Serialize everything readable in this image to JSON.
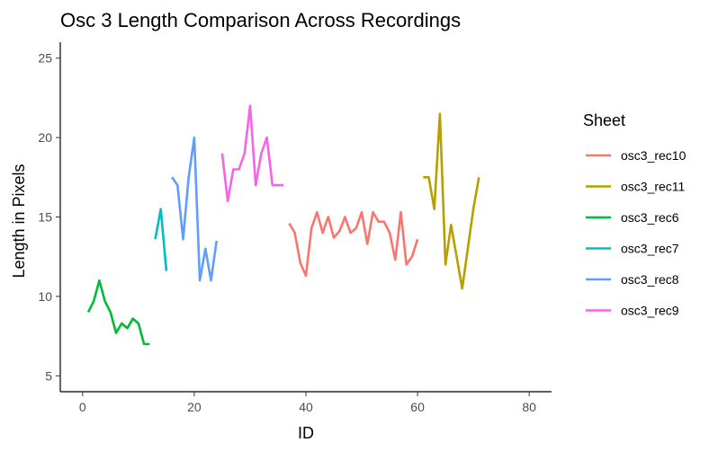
{
  "chart_data": {
    "type": "line",
    "title": "Osc 3 Length Comparison Across Recordings",
    "xlabel": "ID",
    "ylabel": "Length in Pixels",
    "xlim": [
      -4,
      84
    ],
    "ylim": [
      4,
      26
    ],
    "x_ticks": [
      0,
      20,
      40,
      60,
      80
    ],
    "y_ticks": [
      5,
      10,
      15,
      20,
      25
    ],
    "grid": false,
    "legend": {
      "title": "Sheet",
      "placement": "right"
    },
    "series": [
      {
        "name": "osc3_rec10",
        "color": "#F8766D",
        "x": [
          37,
          38,
          39,
          40,
          41,
          42,
          43,
          44,
          45,
          46,
          47,
          48,
          49,
          50,
          51,
          52,
          53,
          54,
          55,
          56,
          57,
          58,
          59,
          60
        ],
        "y": [
          14.6,
          14.0,
          12.1,
          11.3,
          14.3,
          15.3,
          14.0,
          15.0,
          13.7,
          14.1,
          15.0,
          14.0,
          14.3,
          15.3,
          13.3,
          15.3,
          14.7,
          14.7,
          14.0,
          12.3,
          15.3,
          12.0,
          12.5,
          13.6
        ]
      },
      {
        "name": "osc3_rec11",
        "color": "#B79F00",
        "x": [
          61,
          62,
          63,
          64,
          65,
          66,
          67,
          68,
          69,
          70,
          71
        ],
        "y": [
          17.5,
          17.5,
          15.5,
          21.5,
          12.0,
          14.5,
          12.5,
          10.5,
          13.0,
          15.5,
          17.5
        ]
      },
      {
        "name": "osc3_rec6",
        "color": "#00BA38",
        "x": [
          1,
          2,
          3,
          4,
          5,
          6,
          7,
          8,
          9,
          10,
          11,
          12
        ],
        "y": [
          9.0,
          9.7,
          11.0,
          9.7,
          9.0,
          7.7,
          8.3,
          8.0,
          8.6,
          8.3,
          7.0,
          7.0
        ]
      },
      {
        "name": "osc3_rec7",
        "color": "#00BFC4",
        "x": [
          13,
          14,
          15
        ],
        "y": [
          13.6,
          15.5,
          11.6
        ]
      },
      {
        "name": "osc3_rec8",
        "color": "#619CFF",
        "x": [
          16,
          17,
          18,
          19,
          20,
          21,
          22,
          23,
          24
        ],
        "y": [
          17.5,
          17.0,
          13.6,
          17.5,
          20.0,
          11.0,
          13.0,
          11.0,
          13.5
        ]
      },
      {
        "name": "osc3_rec9",
        "color": "#F564E3",
        "x": [
          25,
          26,
          27,
          28,
          29,
          30,
          31,
          32,
          33,
          34,
          35,
          36
        ],
        "y": [
          19.0,
          16.0,
          18.0,
          18.0,
          19.0,
          22.0,
          17.0,
          19.0,
          20.0,
          17.0,
          17.0,
          17.0
        ]
      }
    ]
  }
}
